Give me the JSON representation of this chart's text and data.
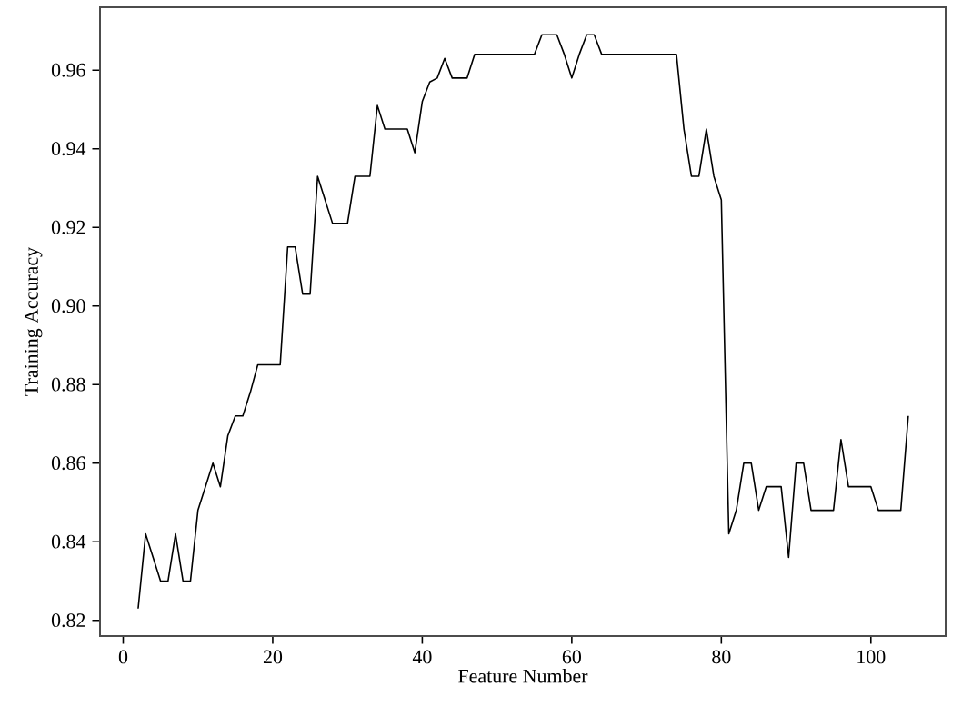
{
  "chart_data": {
    "type": "line",
    "xlabel": "Feature Number",
    "ylabel": "Training Accuracy",
    "xlim": [
      -3.1,
      110
    ],
    "ylim": [
      0.816,
      0.976
    ],
    "xticks": [
      0,
      20,
      40,
      60,
      80,
      100
    ],
    "yticks": [
      {
        "value": 0.82,
        "label": "0.82"
      },
      {
        "value": 0.84,
        "label": "0.84"
      },
      {
        "value": 0.86,
        "label": "0.86"
      },
      {
        "value": 0.88,
        "label": "0.88"
      },
      {
        "value": 0.9,
        "label": "0.90"
      },
      {
        "value": 0.92,
        "label": "0.92"
      },
      {
        "value": 0.94,
        "label": "0.94"
      },
      {
        "value": 0.96,
        "label": "0.96"
      }
    ],
    "marker": "none",
    "line_style": "solid",
    "series": [
      {
        "color": "#000000",
        "x": [
          2,
          3,
          4,
          5,
          6,
          7,
          8,
          9,
          10,
          11,
          12,
          13,
          14,
          15,
          16,
          17,
          18,
          19,
          20,
          21,
          22,
          23,
          24,
          25,
          26,
          27,
          28,
          29,
          30,
          31,
          32,
          33,
          34,
          35,
          36,
          37,
          38,
          39,
          40,
          41,
          42,
          43,
          44,
          45,
          46,
          47,
          48,
          49,
          50,
          51,
          52,
          53,
          54,
          55,
          56,
          57,
          58,
          59,
          60,
          61,
          62,
          63,
          64,
          65,
          66,
          67,
          68,
          69,
          70,
          71,
          72,
          73,
          74,
          75,
          76,
          77,
          78,
          79,
          80,
          81,
          82,
          83,
          84,
          85,
          86,
          87,
          88,
          89,
          90,
          91,
          92,
          93,
          94,
          95,
          96,
          97,
          98,
          99,
          100,
          101,
          102,
          103,
          104,
          105
        ],
        "values": [
          0.823,
          0.842,
          0.836,
          0.83,
          0.83,
          0.842,
          0.83,
          0.83,
          0.848,
          0.854,
          0.86,
          0.854,
          0.867,
          0.872,
          0.872,
          0.878,
          0.885,
          0.885,
          0.885,
          0.885,
          0.915,
          0.915,
          0.903,
          0.903,
          0.933,
          0.927,
          0.921,
          0.921,
          0.921,
          0.933,
          0.933,
          0.933,
          0.951,
          0.945,
          0.945,
          0.945,
          0.945,
          0.939,
          0.952,
          0.957,
          0.958,
          0.963,
          0.958,
          0.958,
          0.958,
          0.964,
          0.964,
          0.964,
          0.964,
          0.964,
          0.964,
          0.964,
          0.964,
          0.964,
          0.969,
          0.969,
          0.969,
          0.964,
          0.958,
          0.964,
          0.969,
          0.969,
          0.964,
          0.964,
          0.964,
          0.964,
          0.964,
          0.964,
          0.964,
          0.964,
          0.964,
          0.964,
          0.964,
          0.945,
          0.933,
          0.933,
          0.945,
          0.933,
          0.927,
          0.842,
          0.848,
          0.86,
          0.86,
          0.848,
          0.854,
          0.854,
          0.854,
          0.836,
          0.86,
          0.86,
          0.848,
          0.848,
          0.848,
          0.848,
          0.866,
          0.854,
          0.854,
          0.854,
          0.854,
          0.848,
          0.848,
          0.848,
          0.848,
          0.872
        ]
      }
    ]
  }
}
